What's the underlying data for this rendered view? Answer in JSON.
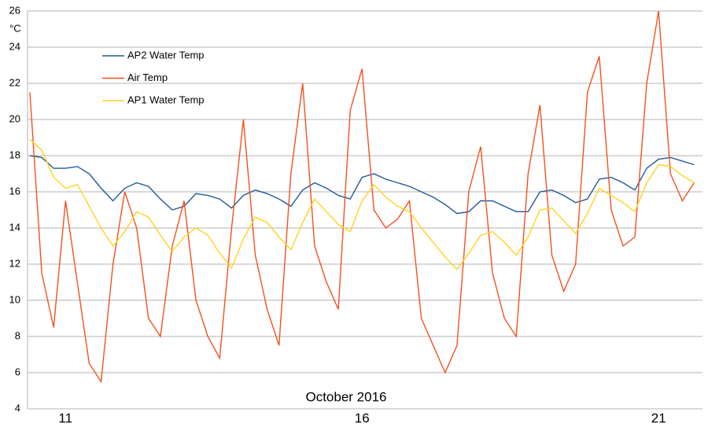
{
  "chart_data": {
    "type": "line",
    "y_unit": "°C",
    "xlabel": "October 2016",
    "x": [
      10.4,
      10.6,
      10.8,
      11.0,
      11.2,
      11.4,
      11.6,
      11.8,
      12.0,
      12.2,
      12.4,
      12.6,
      12.8,
      13.0,
      13.2,
      13.4,
      13.6,
      13.8,
      14.0,
      14.2,
      14.4,
      14.6,
      14.8,
      15.0,
      15.2,
      15.4,
      15.6,
      15.8,
      16.0,
      16.2,
      16.4,
      16.6,
      16.8,
      17.0,
      17.2,
      17.4,
      17.6,
      17.8,
      18.0,
      18.2,
      18.4,
      18.6,
      18.8,
      19.0,
      19.2,
      19.4,
      19.6,
      19.8,
      20.0,
      20.2,
      20.4,
      20.6,
      20.8,
      21.0,
      21.2,
      21.4,
      21.6
    ],
    "series": [
      {
        "name": "AP2 Water Temp",
        "color": "#1f5a96",
        "values": [
          18,
          17.9,
          17.3,
          17.3,
          17.4,
          17,
          16.2,
          15.5,
          16.2,
          16.5,
          16.3,
          15.6,
          15,
          15.2,
          15.9,
          15.8,
          15.6,
          15.1,
          15.8,
          16.1,
          15.9,
          15.6,
          15.2,
          16.1,
          16.5,
          16.2,
          15.8,
          15.6,
          16.8,
          17,
          16.7,
          16.5,
          16.3,
          16,
          15.7,
          15.3,
          14.8,
          14.9,
          15.5,
          15.5,
          15.2,
          14.9,
          14.9,
          16,
          16.1,
          15.8,
          15.4,
          15.6,
          16.7,
          16.8,
          16.5,
          16.1,
          17.3,
          17.8,
          17.9,
          17.7,
          17.5
        ]
      },
      {
        "name": "Air Temp",
        "color": "#f4511e",
        "values": [
          21.5,
          11.5,
          8.5,
          15.5,
          11,
          6.5,
          5.5,
          12,
          16,
          14,
          9,
          8,
          13,
          15.5,
          10,
          8,
          6.8,
          14,
          20,
          12.5,
          9.5,
          7.5,
          17,
          22,
          13,
          11,
          9.5,
          20.5,
          22.8,
          15,
          14,
          14.5,
          15.5,
          9,
          7.5,
          6,
          7.5,
          16,
          18.5,
          11.5,
          9,
          8,
          17,
          20.8,
          12.5,
          10.5,
          12,
          21.5,
          23.5,
          15,
          13,
          13.5,
          22,
          26,
          17,
          15.5,
          16.5
        ]
      },
      {
        "name": "AP1 Water Temp",
        "color": "#ffd320",
        "values": [
          18.9,
          18.3,
          16.8,
          16.2,
          16.4,
          15.2,
          14,
          13,
          13.8,
          14.9,
          14.6,
          13.6,
          12.7,
          13.5,
          14,
          13.6,
          12.6,
          11.8,
          13.4,
          14.6,
          14.3,
          13.5,
          12.8,
          14.3,
          15.6,
          14.9,
          14.2,
          13.8,
          15.5,
          16.4,
          15.7,
          15.2,
          14.9,
          14,
          13.2,
          12.4,
          11.7,
          12.6,
          13.6,
          13.8,
          13.2,
          12.5,
          13.5,
          15,
          15.1,
          14.4,
          13.7,
          14.8,
          16.2,
          15.8,
          15.4,
          14.9,
          16.5,
          17.5,
          17.4,
          16.9,
          16.5
        ]
      }
    ],
    "xlim": [
      10.36,
      21.74
    ],
    "xticks": [
      11,
      16,
      21
    ],
    "ylim": [
      4,
      26
    ],
    "yticks": [
      4,
      6,
      8,
      10,
      12,
      14,
      16,
      18,
      20,
      22,
      24,
      26
    ],
    "grid": true
  }
}
